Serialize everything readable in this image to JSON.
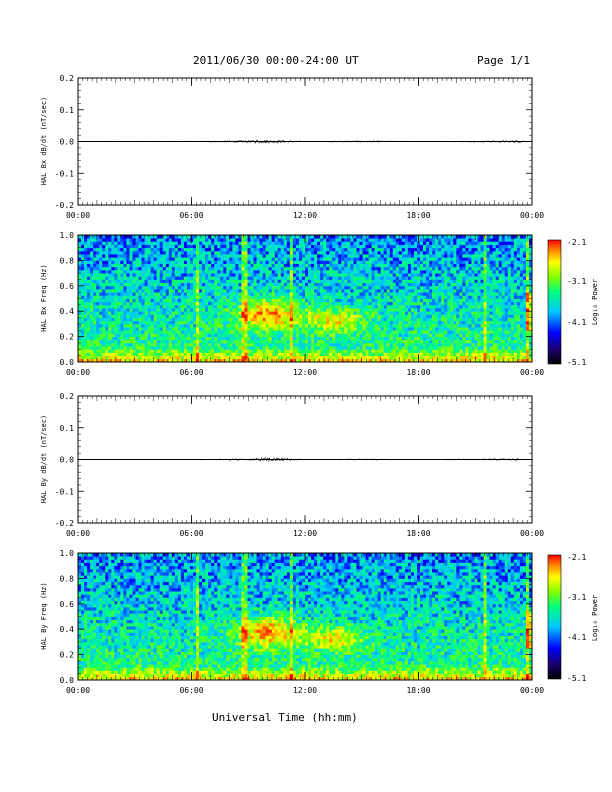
{
  "header": {
    "title": "2011/06/30   00:00-24:00 UT",
    "page": "Page 1/1"
  },
  "footer": {
    "xlabel": "Universal Time (hh:mm)"
  },
  "colorbar": {
    "label": "Log₁₀ Power",
    "ticks": [
      "-2.1",
      "-3.1",
      "-4.1",
      "-5.1"
    ],
    "colors": [
      "#000000",
      "#1a0070",
      "#0000ff",
      "#00c8ff",
      "#00ff7f",
      "#7fff00",
      "#ffff00",
      "#ff8000",
      "#ff0000"
    ]
  },
  "chart_data": [
    {
      "type": "line",
      "ylabel": "HAL Bx dB/dt (nT/sec)",
      "ylim": [
        -0.2,
        0.2
      ],
      "yticks": [
        "0.2",
        "0.1",
        "0.0",
        "-0.1",
        "-0.2"
      ],
      "xlim": [
        0,
        24
      ],
      "xticks": [
        "00:00",
        "06:00",
        "12:00",
        "18:00",
        "00:00"
      ],
      "series": [
        {
          "x": [
            0,
            3,
            6,
            9,
            9.5,
            10.5,
            12,
            15,
            18,
            21,
            23.5
          ],
          "y": [
            0.0,
            0.0,
            0.0,
            0.003,
            0.005,
            0.004,
            0.0,
            0.002,
            0.0,
            0.001,
            0.004
          ]
        }
      ]
    },
    {
      "type": "heatmap",
      "ylabel": "HAL Bx Freq (Hz)",
      "ylim": [
        0.0,
        1.0
      ],
      "yticks": [
        "1.0",
        "0.8",
        "0.6",
        "0.4",
        "0.2",
        "0.0"
      ],
      "xlim": [
        0,
        24
      ],
      "xticks": [
        "00:00",
        "06:00",
        "12:00",
        "18:00",
        "00:00"
      ],
      "zlim": [
        -5.1,
        -2.1
      ]
    },
    {
      "type": "line",
      "ylabel": "HAL By dB/dt (nT/sec)",
      "ylim": [
        -0.2,
        0.2
      ],
      "yticks": [
        "0.2",
        "0.1",
        "0.0",
        "-0.1",
        "-0.2"
      ],
      "xlim": [
        0,
        24
      ],
      "xticks": [
        "00:00",
        "06:00",
        "12:00",
        "18:00",
        "00:00"
      ],
      "series": [
        {
          "x": [
            0,
            3,
            6,
            9,
            10,
            11,
            12,
            15,
            18,
            21,
            23.5
          ],
          "y": [
            0.0,
            0.0,
            0.0,
            0.002,
            0.006,
            0.004,
            0.0,
            0.001,
            0.0,
            0.001,
            0.003
          ]
        }
      ]
    },
    {
      "type": "heatmap",
      "ylabel": "HAL By Freq (Hz)",
      "ylim": [
        0.0,
        1.0
      ],
      "yticks": [
        "1.0",
        "0.8",
        "0.6",
        "0.4",
        "0.2",
        "0.0"
      ],
      "xlim": [
        0,
        24
      ],
      "xticks": [
        "00:00",
        "06:00",
        "12:00",
        "18:00",
        "00:00"
      ],
      "zlim": [
        -5.1,
        -2.1
      ]
    }
  ]
}
